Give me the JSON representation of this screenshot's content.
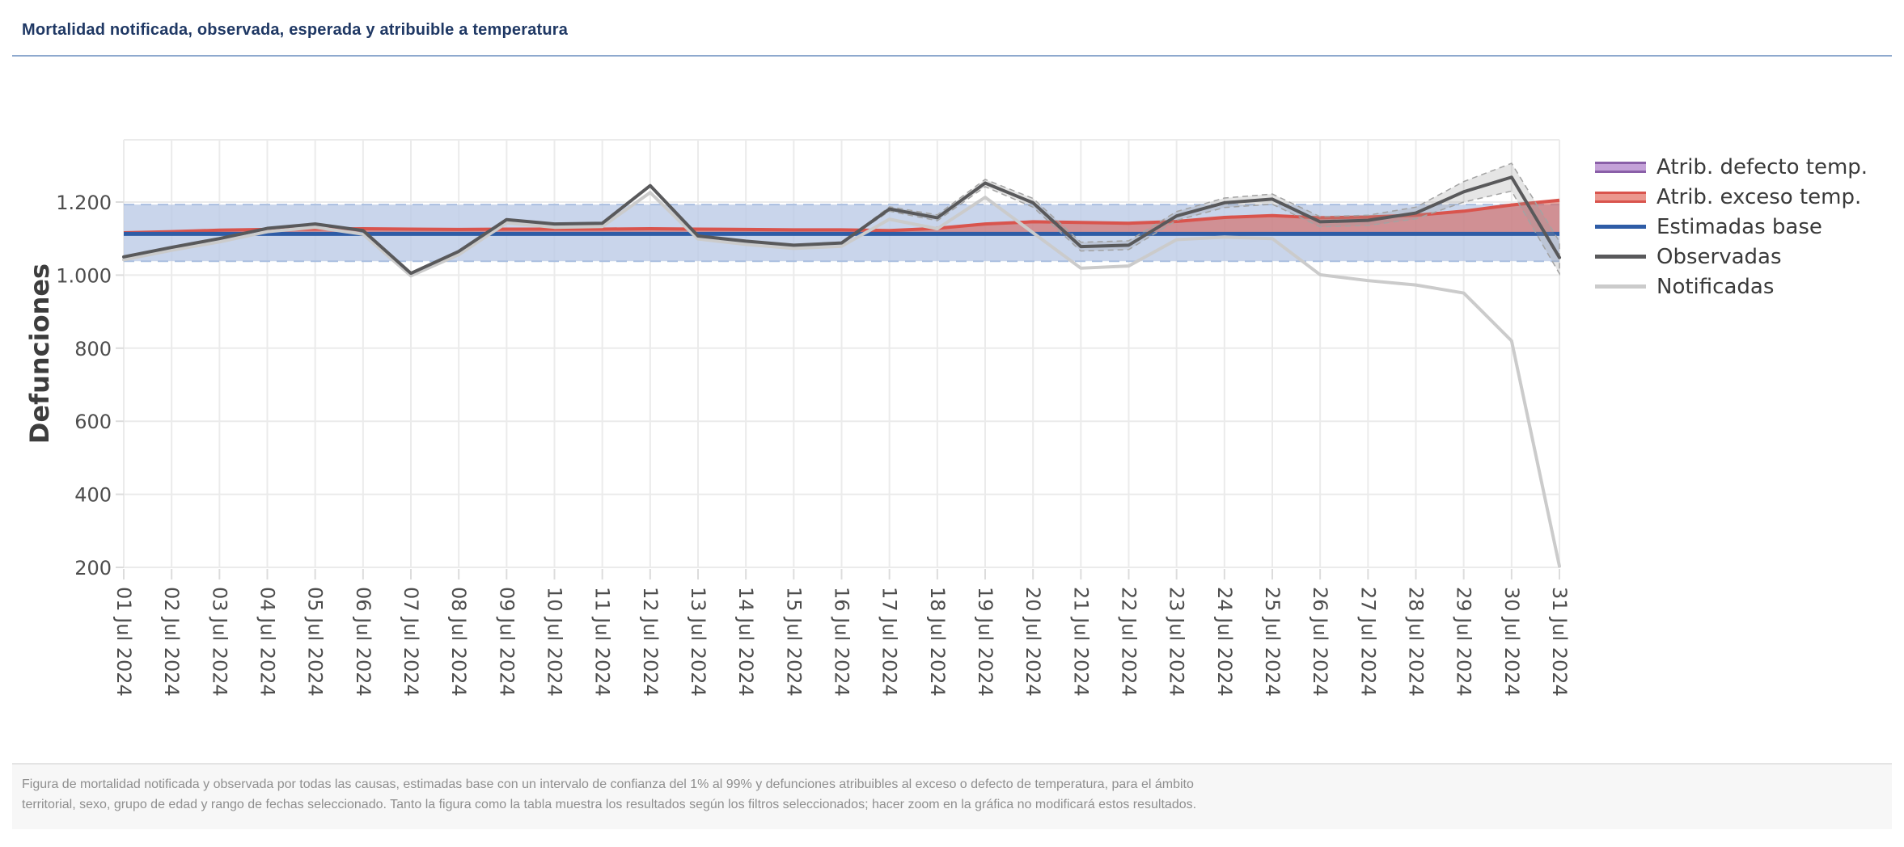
{
  "page": {
    "title": "Mortalidad notificada, observada, esperada y atribuible a temperatura",
    "footer": "Figura de mortalidad notificada y observada por todas las causas, estimadas base con un intervalo de confianza del 1% al 99% y defunciones atribuibles al exceso o defecto de temperatura, para el ámbito territorial, sexo, grupo de edad y rango de fechas seleccionado. Tanto la figura como la tabla muestra los resultados según los filtros seleccionados; hacer zoom en la gráfica no modificará estos resultados."
  },
  "chart_data": {
    "type": "line",
    "title": "Mortalidad notificada, observada, esperada y atribuible a temperatura",
    "xlabel": "",
    "ylabel": "Defunciones",
    "ylim": [
      200,
      1370
    ],
    "grid": true,
    "legend_position": "right",
    "yticks": [
      {
        "value": 200,
        "label": "200"
      },
      {
        "value": 400,
        "label": "400"
      },
      {
        "value": 600,
        "label": "600"
      },
      {
        "value": 800,
        "label": "800"
      },
      {
        "value": 1000,
        "label": "1.000"
      },
      {
        "value": 1200,
        "label": "1.200"
      }
    ],
    "categories": [
      "01 Jul 2024",
      "02 Jul 2024",
      "03 Jul 2024",
      "04 Jul 2024",
      "05 Jul 2024",
      "06 Jul 2024",
      "07 Jul 2024",
      "08 Jul 2024",
      "09 Jul 2024",
      "10 Jul 2024",
      "11 Jul 2024",
      "12 Jul 2024",
      "13 Jul 2024",
      "14 Jul 2024",
      "15 Jul 2024",
      "16 Jul 2024",
      "17 Jul 2024",
      "18 Jul 2024",
      "19 Jul 2024",
      "20 Jul 2024",
      "21 Jul 2024",
      "22 Jul 2024",
      "23 Jul 2024",
      "24 Jul 2024",
      "25 Jul 2024",
      "26 Jul 2024",
      "27 Jul 2024",
      "28 Jul 2024",
      "29 Jul 2024",
      "30 Jul 2024",
      "31 Jul 2024"
    ],
    "series": [
      {
        "name": "Estimadas base",
        "type": "line",
        "color": "#2e5ca6",
        "constant_value": 1113,
        "ci_label": "intervalo de confianza del 1% al 99%",
        "ci_lower": 1038,
        "ci_upper": 1193,
        "ci_fill": "#bccbe6",
        "ci_border": "#aabfe0"
      },
      {
        "name": "Atrib. exceso temp.",
        "type": "area",
        "line_color": "#d9544d",
        "fill_color": "rgba(214,88,77,0.55)",
        "baseline": 1113,
        "upper": [
          1116,
          1119,
          1123,
          1125,
          1126,
          1127,
          1126,
          1125,
          1126,
          1126,
          1126,
          1127,
          1126,
          1125,
          1124,
          1124,
          1122,
          1128,
          1140,
          1146,
          1144,
          1142,
          1147,
          1158,
          1163,
          1157,
          1159,
          1164,
          1175,
          1192,
          1205
        ]
      },
      {
        "name": "Atrib. defecto temp.",
        "type": "area",
        "line_color": "#8a5fa8",
        "fill_color": "#c4a1d8",
        "baseline": 1113,
        "upper": []
      },
      {
        "name": "Observadas",
        "type": "line",
        "color": "#59595b",
        "values": [
          1050,
          1076,
          1100,
          1128,
          1140,
          1122,
          1005,
          1065,
          1152,
          1140,
          1142,
          1245,
          1107,
          1093,
          1082,
          1088,
          1181,
          1157,
          1252,
          1198,
          1078,
          1082,
          1162,
          1198,
          1208,
          1146,
          1150,
          1170,
          1228,
          1268,
          1048
        ],
        "ci_delta": [
          0,
          0,
          0,
          0,
          0,
          0,
          0,
          0,
          0,
          0,
          0,
          0,
          0,
          0,
          0,
          0,
          6,
          8,
          10,
          12,
          12,
          12,
          12,
          13,
          14,
          14,
          14,
          16,
          28,
          38,
          44
        ],
        "ci_fill": "rgba(150,150,150,0.25)",
        "ci_border": "#a3a3a3"
      },
      {
        "name": "Notificadas",
        "type": "line",
        "color": "#cbcbcb",
        "values": [
          1042,
          1068,
          1091,
          1119,
          1131,
          1112,
          998,
          1056,
          1143,
          1131,
          1133,
          1226,
          1099,
          1084,
          1073,
          1079,
          1153,
          1127,
          1213,
          1116,
          1019,
          1025,
          1097,
          1104,
          1100,
          1001,
          985,
          973,
          951,
          820,
          203
        ]
      }
    ],
    "legend": [
      {
        "label": "Atrib. defecto temp.",
        "swatch": "band",
        "fill": "#c4a1d8",
        "border": "#8a5fa8"
      },
      {
        "label": "Atrib. exceso temp.",
        "swatch": "band",
        "fill": "#eb978e",
        "border": "#d9544d"
      },
      {
        "label": "Estimadas base",
        "swatch": "line",
        "color": "#2e5ca6"
      },
      {
        "label": "Observadas",
        "swatch": "line",
        "color": "#59595b"
      },
      {
        "label": "Notificadas",
        "swatch": "line",
        "color": "#cbcbcb"
      }
    ]
  }
}
